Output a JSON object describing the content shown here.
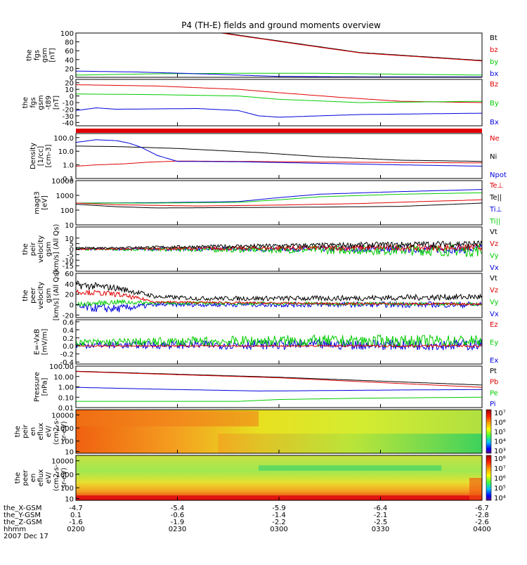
{
  "title": "P4 (TH-E) fields and ground moments overview",
  "x_ticks": [
    "0200",
    "0230",
    "0300",
    "0330",
    "0400"
  ],
  "orbit": {
    "rows": [
      {
        "label": "the_X-GSM",
        "values": [
          "-4.7",
          "-5.4",
          "-5.9",
          "-6.4",
          "-6.7"
        ]
      },
      {
        "label": "the_Y-GSM",
        "values": [
          "0.1",
          "-0.6",
          "-1.4",
          "-2.1",
          "-2.8"
        ]
      },
      {
        "label": "the_Z-GSM",
        "values": [
          "-1.6",
          "-1.9",
          "-2.2",
          "-2.5",
          "-2.6"
        ]
      },
      {
        "label": "hhmm",
        "values": [
          "0200",
          "0230",
          "0300",
          "0330",
          "0400"
        ]
      }
    ],
    "date": "2007 Dec 17"
  },
  "colors": {
    "black": "#000000",
    "red": "#e00000",
    "green": "#00cc00",
    "blue": "#0000dd"
  },
  "chart_data": [
    {
      "type": "line",
      "id": "p1",
      "ylabel_lines": [
        "the",
        "fgs",
        "gsm",
        "[nT]"
      ],
      "ylim": [
        0,
        100
      ],
      "ticks": [
        {
          "v": 100,
          "t": "100"
        },
        {
          "v": 80,
          "t": "80"
        },
        {
          "v": 60,
          "t": "60"
        },
        {
          "v": 40,
          "t": "40"
        },
        {
          "v": 20,
          "t": "20"
        },
        {
          "v": 0,
          "t": "0"
        }
      ],
      "legend": [
        {
          "name": "Bt",
          "color": "black"
        },
        {
          "name": "bz",
          "color": "red"
        },
        {
          "name": "by",
          "color": "green"
        },
        {
          "name": "bx",
          "color": "blue"
        }
      ],
      "series": [
        {
          "name": "Bt",
          "color": "black",
          "x": [
            0,
            0.35,
            0.5,
            0.7,
            0.85,
            1.0
          ],
          "y": [
            130,
            102,
            82,
            56,
            47,
            38
          ]
        },
        {
          "name": "bz",
          "color": "red",
          "x": [
            0,
            0.35,
            0.5,
            0.7,
            0.85,
            1.0
          ],
          "y": [
            128,
            101,
            81,
            55,
            46,
            37
          ]
        },
        {
          "name": "by",
          "color": "green",
          "x": [
            0,
            0.2,
            0.4,
            0.6,
            0.8,
            1.0
          ],
          "y": [
            5,
            8,
            9,
            9,
            7,
            5
          ]
        },
        {
          "name": "bx",
          "color": "blue",
          "x": [
            0,
            0.15,
            0.3,
            0.5,
            0.7,
            1.0
          ],
          "y": [
            14,
            12,
            8,
            2,
            1,
            1
          ]
        }
      ]
    },
    {
      "type": "line",
      "id": "p2",
      "ylabel_lines": [
        "the",
        "fgs",
        "gsm",
        "-t89",
        "[nT]"
      ],
      "ylim": [
        -45,
        25
      ],
      "ticks": [
        {
          "v": 20,
          "t": "20"
        },
        {
          "v": 10,
          "t": "10"
        },
        {
          "v": 0,
          "t": "0"
        },
        {
          "v": -10,
          "t": "-10"
        },
        {
          "v": -20,
          "t": "-20"
        },
        {
          "v": -30,
          "t": "-30"
        },
        {
          "v": -40,
          "t": "-40"
        }
      ],
      "legend": [
        {
          "name": "Bz",
          "color": "red"
        },
        {
          "name": "By",
          "color": "green"
        },
        {
          "name": "Bx",
          "color": "blue"
        }
      ],
      "series": [
        {
          "name": "Bz",
          "color": "red",
          "x": [
            0,
            0.2,
            0.4,
            0.5,
            0.65,
            0.8,
            1.0
          ],
          "y": [
            17,
            15,
            10,
            5,
            -2,
            -8,
            -10
          ]
        },
        {
          "name": "By",
          "color": "green",
          "x": [
            0,
            0.2,
            0.4,
            0.5,
            0.7,
            1.0
          ],
          "y": [
            3,
            2,
            0,
            -5,
            -10,
            -8
          ]
        },
        {
          "name": "Bx",
          "color": "blue",
          "x": [
            0,
            0.05,
            0.1,
            0.3,
            0.4,
            0.45,
            0.5,
            0.7,
            1.0
          ],
          "y": [
            -22,
            -18,
            -20,
            -19,
            -22,
            -30,
            -32,
            -28,
            -26
          ]
        }
      ]
    },
    {
      "type": "line",
      "id": "p3",
      "log": true,
      "ylabel_lines": [
        "Density",
        "[1/cc]",
        "[cm-3]"
      ],
      "ylim": [
        0.1,
        200
      ],
      "ticks": [
        {
          "v": 100,
          "t": "100.0"
        },
        {
          "v": 10,
          "t": "10.0"
        },
        {
          "v": 1,
          "t": "1.0"
        },
        {
          "v": 0.1,
          "t": "0.1"
        }
      ],
      "legend": [
        {
          "name": "Ne",
          "color": "red"
        },
        {
          "name": "Ni",
          "color": "black"
        },
        {
          "name": "Npot",
          "color": "blue"
        }
      ],
      "series": [
        {
          "name": "Ni",
          "color": "black",
          "x": [
            0,
            0.1,
            0.25,
            0.45,
            0.6,
            0.8,
            1.0
          ],
          "y": [
            24,
            22,
            16,
            8,
            4,
            2.2,
            1.8
          ]
        },
        {
          "name": "Ne",
          "color": "red",
          "x": [
            0,
            0.05,
            0.12,
            0.18,
            0.25,
            0.4,
            0.6,
            0.8,
            1.0
          ],
          "y": [
            0.8,
            1.0,
            1.2,
            1.6,
            1.9,
            1.8,
            1.6,
            1.5,
            1.4
          ]
        },
        {
          "name": "Npot",
          "color": "blue",
          "x": [
            0,
            0.05,
            0.1,
            0.13,
            0.16,
            0.2,
            0.25,
            0.4,
            0.6,
            0.8,
            1.0
          ],
          "y": [
            45,
            70,
            60,
            40,
            20,
            5,
            1.8,
            1.7,
            1.3,
            1.0,
            0.8
          ]
        }
      ]
    },
    {
      "type": "line",
      "id": "p4",
      "log": true,
      "ylabel_lines": [
        "magt3",
        "[eV]"
      ],
      "ylim": [
        10,
        10000
      ],
      "ticks": [
        {
          "v": 10000,
          "t": "10000"
        },
        {
          "v": 1000,
          "t": "1000"
        },
        {
          "v": 100,
          "t": "100"
        },
        {
          "v": 10,
          "t": "10"
        }
      ],
      "legend": [
        {
          "name": "Te⊥",
          "color": "red"
        },
        {
          "name": "Te||",
          "color": "black"
        },
        {
          "name": "Ti⊥",
          "color": "blue"
        },
        {
          "name": "Ti||",
          "color": "green"
        }
      ],
      "series": [
        {
          "name": "Ti⊥",
          "color": "blue",
          "x": [
            0,
            0.2,
            0.4,
            0.5,
            0.6,
            0.8,
            1.0
          ],
          "y": [
            300,
            320,
            380,
            700,
            1200,
            1800,
            2500
          ]
        },
        {
          "name": "Ti||",
          "color": "green",
          "x": [
            0,
            0.2,
            0.4,
            0.5,
            0.6,
            0.8,
            1.0
          ],
          "y": [
            300,
            300,
            340,
            500,
            800,
            1200,
            1500
          ]
        },
        {
          "name": "Te⊥",
          "color": "red",
          "x": [
            0,
            0.1,
            0.3,
            0.5,
            0.7,
            0.85,
            1.0
          ],
          "y": [
            300,
            230,
            190,
            220,
            280,
            380,
            500
          ]
        },
        {
          "name": "Te||",
          "color": "black",
          "x": [
            0,
            0.1,
            0.2,
            0.4,
            0.6,
            0.8,
            1.0
          ],
          "y": [
            250,
            170,
            140,
            150,
            160,
            180,
            300
          ]
        }
      ]
    },
    {
      "type": "line",
      "id": "p5",
      "noisy": true,
      "ylabel_lines": [
        "the",
        "peir",
        "velocity",
        "gsm",
        "[km/s] (All Qs)"
      ],
      "ylim": [
        -20,
        20
      ],
      "ticks": [
        {
          "v": 10,
          "t": "10"
        },
        {
          "v": 5,
          "t": "5"
        },
        {
          "v": 0,
          "t": "0"
        },
        {
          "v": -5,
          "t": "-5"
        },
        {
          "v": -10,
          "t": "-10"
        },
        {
          "v": -15,
          "t": "-15"
        }
      ],
      "legend": [
        {
          "name": "Vt",
          "color": "black"
        },
        {
          "name": "Vz",
          "color": "red"
        },
        {
          "name": "Vy",
          "color": "green"
        },
        {
          "name": "Vx",
          "color": "blue"
        }
      ],
      "series": [
        {
          "name": "Vx",
          "color": "blue",
          "x": [
            0,
            0.5,
            1.0
          ],
          "y": [
            0,
            0,
            0
          ],
          "noise": [
            1,
            2,
            4
          ]
        },
        {
          "name": "Vy",
          "color": "green",
          "x": [
            0,
            0.5,
            1.0
          ],
          "y": [
            0,
            -0.5,
            -1
          ],
          "noise": [
            1,
            3,
            6
          ]
        },
        {
          "name": "Vz",
          "color": "red",
          "x": [
            0,
            0.5,
            1.0
          ],
          "y": [
            0,
            1,
            1.5
          ],
          "noise": [
            0.6,
            2,
            3
          ]
        },
        {
          "name": "Vt",
          "color": "black",
          "x": [
            0,
            0.5,
            1.0
          ],
          "y": [
            1,
            3,
            5
          ],
          "noise": [
            0.6,
            2,
            3
          ]
        }
      ]
    },
    {
      "type": "line",
      "id": "p6",
      "noisy": true,
      "ylabel_lines": [
        "the",
        "peer",
        "velocity",
        "gsm",
        "[km/s] (All Qs)"
      ],
      "ylim": [
        -25,
        60
      ],
      "ticks": [
        {
          "v": 60,
          "t": "60"
        },
        {
          "v": 40,
          "t": "40"
        },
        {
          "v": 20,
          "t": "20"
        },
        {
          "v": 0,
          "t": "0"
        },
        {
          "v": -20,
          "t": "-20"
        }
      ],
      "legend": [
        {
          "name": "Vt",
          "color": "black"
        },
        {
          "name": "Vz",
          "color": "red"
        },
        {
          "name": "Vy",
          "color": "green"
        },
        {
          "name": "Vx",
          "color": "blue"
        }
      ],
      "series": [
        {
          "name": "Vt",
          "color": "black",
          "x": [
            0,
            0.1,
            0.2,
            0.3,
            0.6,
            1.0
          ],
          "y": [
            38,
            32,
            15,
            12,
            12,
            15
          ],
          "noise": [
            8,
            6,
            4,
            4,
            5,
            6
          ]
        },
        {
          "name": "Vx",
          "color": "blue",
          "x": [
            0,
            0.1,
            0.2,
            0.6,
            1.0
          ],
          "y": [
            -5,
            -8,
            0,
            0,
            0
          ],
          "noise": [
            8,
            8,
            4,
            5,
            6
          ]
        },
        {
          "name": "Vy",
          "color": "green",
          "x": [
            0,
            0.1,
            0.2,
            0.6,
            1.0
          ],
          "y": [
            0,
            5,
            3,
            2,
            1
          ],
          "noise": [
            4,
            5,
            3,
            3,
            3
          ]
        },
        {
          "name": "Vz",
          "color": "red",
          "x": [
            0,
            0.1,
            0.2,
            0.6,
            1.0
          ],
          "y": [
            25,
            20,
            5,
            2,
            1
          ],
          "noise": [
            5,
            5,
            2,
            2,
            2
          ]
        }
      ]
    },
    {
      "type": "line",
      "id": "p7",
      "noisy": true,
      "ylabel_lines": [
        "E=-VxB",
        "[mV/m]"
      ],
      "ylim": [
        -0.45,
        0.65
      ],
      "ticks": [
        {
          "v": 0.6,
          "t": "0.6"
        },
        {
          "v": 0.4,
          "t": "0.4"
        },
        {
          "v": 0.2,
          "t": "0.2"
        },
        {
          "v": 0.0,
          "t": "0.0"
        },
        {
          "v": -0.2,
          "t": "-0.2"
        },
        {
          "v": -0.4,
          "t": "-0.4"
        }
      ],
      "legend": [
        {
          "name": "Ez",
          "color": "red"
        },
        {
          "name": "Ey",
          "color": "green"
        },
        {
          "name": "Ex",
          "color": "blue"
        }
      ],
      "series": [
        {
          "name": "Ex",
          "color": "blue",
          "x": [
            0,
            0.5,
            1.0
          ],
          "y": [
            0.02,
            0.03,
            0.03
          ],
          "noise": [
            0.08,
            0.12,
            0.14
          ]
        },
        {
          "name": "Ey",
          "color": "green",
          "x": [
            0,
            0.5,
            1.0
          ],
          "y": [
            0.08,
            0.12,
            0.12
          ],
          "noise": [
            0.09,
            0.15,
            0.15
          ]
        },
        {
          "name": "Ez",
          "color": "red",
          "x": [
            0,
            0.5,
            1.0
          ],
          "y": [
            0,
            0,
            0
          ],
          "noise": [
            0.01,
            0.02,
            0.03
          ]
        }
      ]
    },
    {
      "type": "line",
      "id": "p8",
      "log": true,
      "ylabel_lines": [
        "Pressure",
        "[nPa]"
      ],
      "ylim": [
        0.01,
        100
      ],
      "ticks": [
        {
          "v": 100,
          "t": "100.00"
        },
        {
          "v": 10,
          "t": "10.00"
        },
        {
          "v": 1,
          "t": "1.00"
        },
        {
          "v": 0.1,
          "t": "0.10"
        },
        {
          "v": 0.01,
          "t": "0.01"
        }
      ],
      "legend": [
        {
          "name": "Pt",
          "color": "black"
        },
        {
          "name": "Pb",
          "color": "red"
        },
        {
          "name": "Pe",
          "color": "green"
        },
        {
          "name": "Pi",
          "color": "blue"
        }
      ],
      "series": [
        {
          "name": "Pt",
          "color": "black",
          "x": [
            0,
            0.5,
            1.0
          ],
          "y": [
            32,
            8.5,
            1.5
          ]
        },
        {
          "name": "Pb",
          "color": "red",
          "x": [
            0,
            0.5,
            1.0
          ],
          "y": [
            30,
            7.5,
            0.9
          ]
        },
        {
          "name": "Pi",
          "color": "blue",
          "x": [
            0,
            0.2,
            0.45,
            0.55,
            0.8,
            1.0
          ],
          "y": [
            0.9,
            0.6,
            0.4,
            0.42,
            0.5,
            0.55
          ]
        },
        {
          "name": "Pe",
          "color": "green",
          "x": [
            0,
            0.4,
            0.5,
            0.7,
            1.0
          ],
          "y": [
            0.04,
            0.04,
            0.06,
            0.08,
            0.1
          ]
        }
      ]
    },
    {
      "type": "heatmap",
      "id": "p9",
      "ylabel_lines": [
        "the",
        "peir",
        "en",
        "eflux",
        "eV/",
        "(cm2-s-",
        "sr-eV)"
      ],
      "ticks": [
        "10000",
        "1000",
        "100",
        "10"
      ],
      "colorbar_ticks": [
        "10⁷",
        "10⁶",
        "10⁵",
        "10⁴",
        "10³"
      ]
    },
    {
      "type": "heatmap",
      "id": "p10",
      "ylabel_lines": [
        "the",
        "peer",
        "en",
        "eflux",
        "eV/",
        "(cm2-s-",
        "sr-eV)"
      ],
      "ticks": [
        "10000",
        "1000",
        "100",
        "10"
      ],
      "colorbar_ticks": [
        "10⁸",
        "10⁷",
        "10⁶",
        "10⁵",
        "10⁴"
      ]
    }
  ]
}
